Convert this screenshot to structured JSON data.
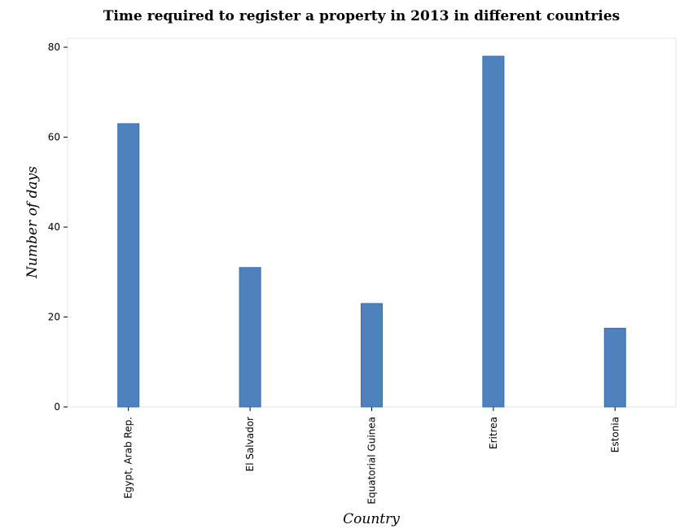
{
  "chart_data": {
    "type": "bar",
    "title": "Time required to register a property in 2013 in different countries",
    "xlabel": "Country",
    "ylabel": "Number of days",
    "categories": [
      "Egypt, Arab Rep.",
      "El Salvador",
      "Equatorial Guinea",
      "Eritrea",
      "Estonia"
    ],
    "values": [
      63,
      31,
      23,
      78,
      17.5
    ],
    "ylim": [
      0,
      82
    ],
    "yticks": [
      0,
      20,
      40,
      60,
      80
    ],
    "bar_color": "#4f81bd",
    "grid": false,
    "legend": "none"
  }
}
